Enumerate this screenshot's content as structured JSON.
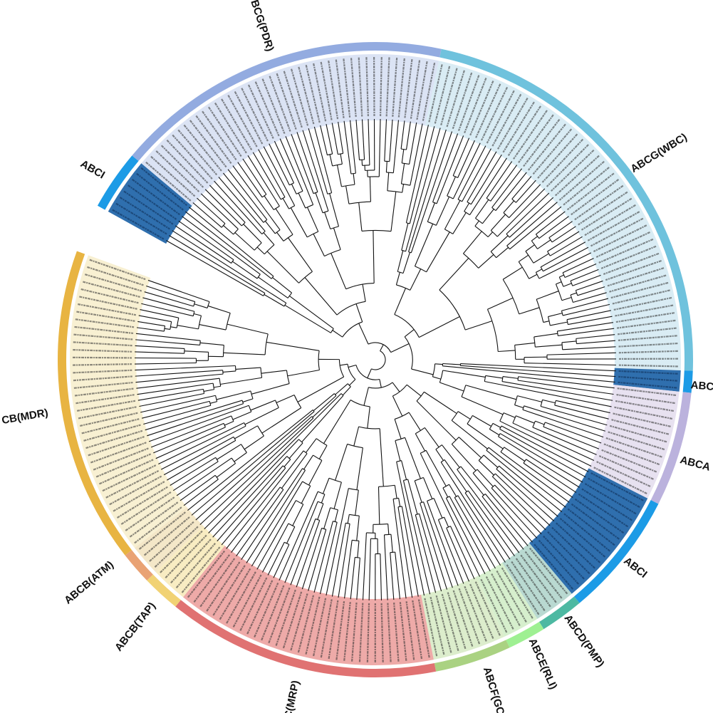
{
  "clades": [
    {
      "label": "ABCI",
      "ring_color": "#1c9be6",
      "band_color": "#2f6fae"
    },
    {
      "label": "BCG(PDR)",
      "ring_color": "#93abe0",
      "band_color": "#dbe3f4"
    },
    {
      "label": "ABCG(WBC)",
      "ring_color": "#6fc2dd",
      "band_color": "#d9ecf4"
    },
    {
      "label": "ABC",
      "ring_color": "#1c9be6",
      "band_color": "#2f6fae"
    },
    {
      "label": "ABCA",
      "ring_color": "#bbb2dd",
      "band_color": "#e7e1f0"
    },
    {
      "label": "ABCI",
      "ring_color": "#1c9be6",
      "band_color": "#2f6fae"
    },
    {
      "label": "ABCD(PMP)",
      "ring_color": "#4db9a2",
      "band_color": "#b9d9d1"
    },
    {
      "label": "ABCE(RLI)",
      "ring_color": "#9ef092",
      "band_color": "#d6efcd"
    },
    {
      "label": "ABCF(GC",
      "ring_color": "#aad282",
      "band_color": "#dcedcc"
    },
    {
      "label": "C(MRP)",
      "ring_color": "#e07272",
      "band_color": "#eeaaa8"
    },
    {
      "label": "ABCB(TAP)",
      "ring_color": "#f1d274",
      "band_color": "#f8ecc2"
    },
    {
      "label": "ABCB(ATM)",
      "ring_color": "#e9a274",
      "band_color": "#f4e7c8"
    },
    {
      "label": "CB(MDR)",
      "ring_color": "#e8b442",
      "band_color": "#f8f0d2"
    }
  ],
  "branch_color": "#111111"
}
